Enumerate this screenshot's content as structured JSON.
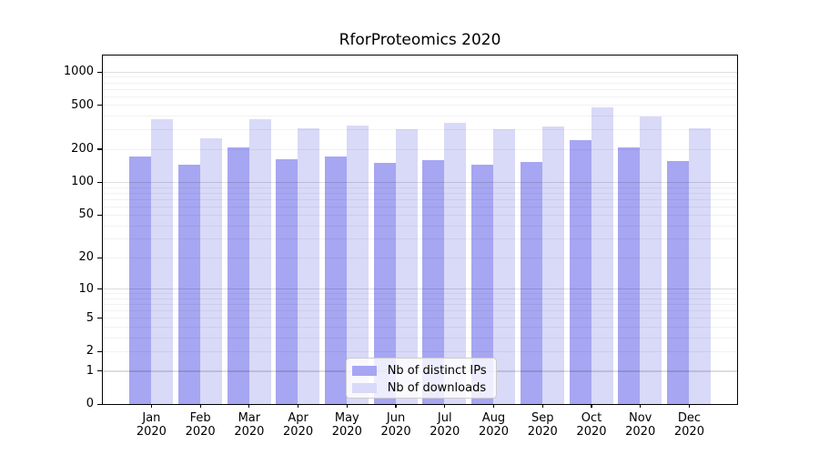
{
  "title": "RforProteomics 2020",
  "chart_data": {
    "type": "bar",
    "y_scale": "log1p",
    "title": "RforProteomics 2020",
    "categories": [
      "Jan",
      "Feb",
      "Mar",
      "Apr",
      "May",
      "Jun",
      "Jul",
      "Aug",
      "Sep",
      "Oct",
      "Nov",
      "Dec"
    ],
    "x_year_suffix": "2020",
    "series": [
      {
        "name": "Nb of distinct IPs",
        "color": "#a6a6f2",
        "values": [
          170,
          145,
          206,
          162,
          170,
          150,
          158,
          144,
          153,
          240,
          206,
          155
        ]
      },
      {
        "name": "Nb of downloads",
        "color": "#d9d9f8",
        "values": [
          375,
          250,
          370,
          310,
          325,
          300,
          345,
          300,
          320,
          480,
          392,
          310
        ]
      }
    ],
    "y_ticks": [
      0,
      1,
      2,
      5,
      10,
      20,
      50,
      100,
      200,
      500,
      1000
    ],
    "ylim": [
      0,
      1390
    ],
    "xlabel": "",
    "ylabel": "",
    "grid": "horizontal log major+minor",
    "legend_position": "lower center"
  },
  "colors": {
    "background": "#ffffff",
    "spine": "#000000",
    "bar_distinct_ips": "#a6a6f2",
    "bar_downloads": "#d9d9f8",
    "legend_border": "#cccccc"
  }
}
